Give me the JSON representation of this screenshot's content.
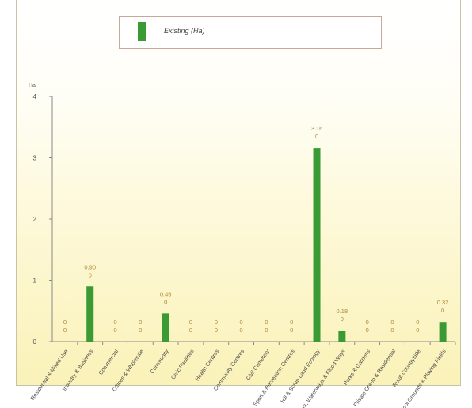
{
  "chart_data": {
    "type": "bar",
    "legend": {
      "label": "Existing (Ha)",
      "color": "#3a9a34",
      "position": "top-center"
    },
    "ylabel": "Ha",
    "ylim": [
      0,
      4
    ],
    "yticks": [
      0,
      1,
      2,
      3,
      4
    ],
    "grid": false,
    "categories": [
      "Residential & Mixed Use",
      "Industry & Business",
      "Commercial",
      "Offices & Wholesale",
      "Community",
      "Civic Facilities",
      "Health Centres",
      "Community Centres",
      "Civil Cemetery",
      "Sport & Recreation Centres",
      "Hill & Scrub Land Ecology",
      "Rivers, Waterways & Flood Ways",
      "Parks & Gardens",
      "Private Green & Residential",
      "Rural Countryside",
      "School Grounds & Playing Fields"
    ],
    "values": [
      0,
      0.9,
      0,
      0,
      0.46,
      0,
      0,
      0,
      0,
      0,
      3.16,
      0.18,
      0,
      0,
      0,
      0.32
    ],
    "value_labels": [
      "0\n0",
      "0.90\n0",
      "0\n0",
      "0\n0",
      "0.46\n0",
      "0\n0",
      "0\n0",
      "0\n0",
      "0\n0",
      "0\n0",
      "3.16\n0",
      "0.18\n0",
      "0\n0",
      "0\n0",
      "0\n0",
      "0.32\n0"
    ]
  }
}
